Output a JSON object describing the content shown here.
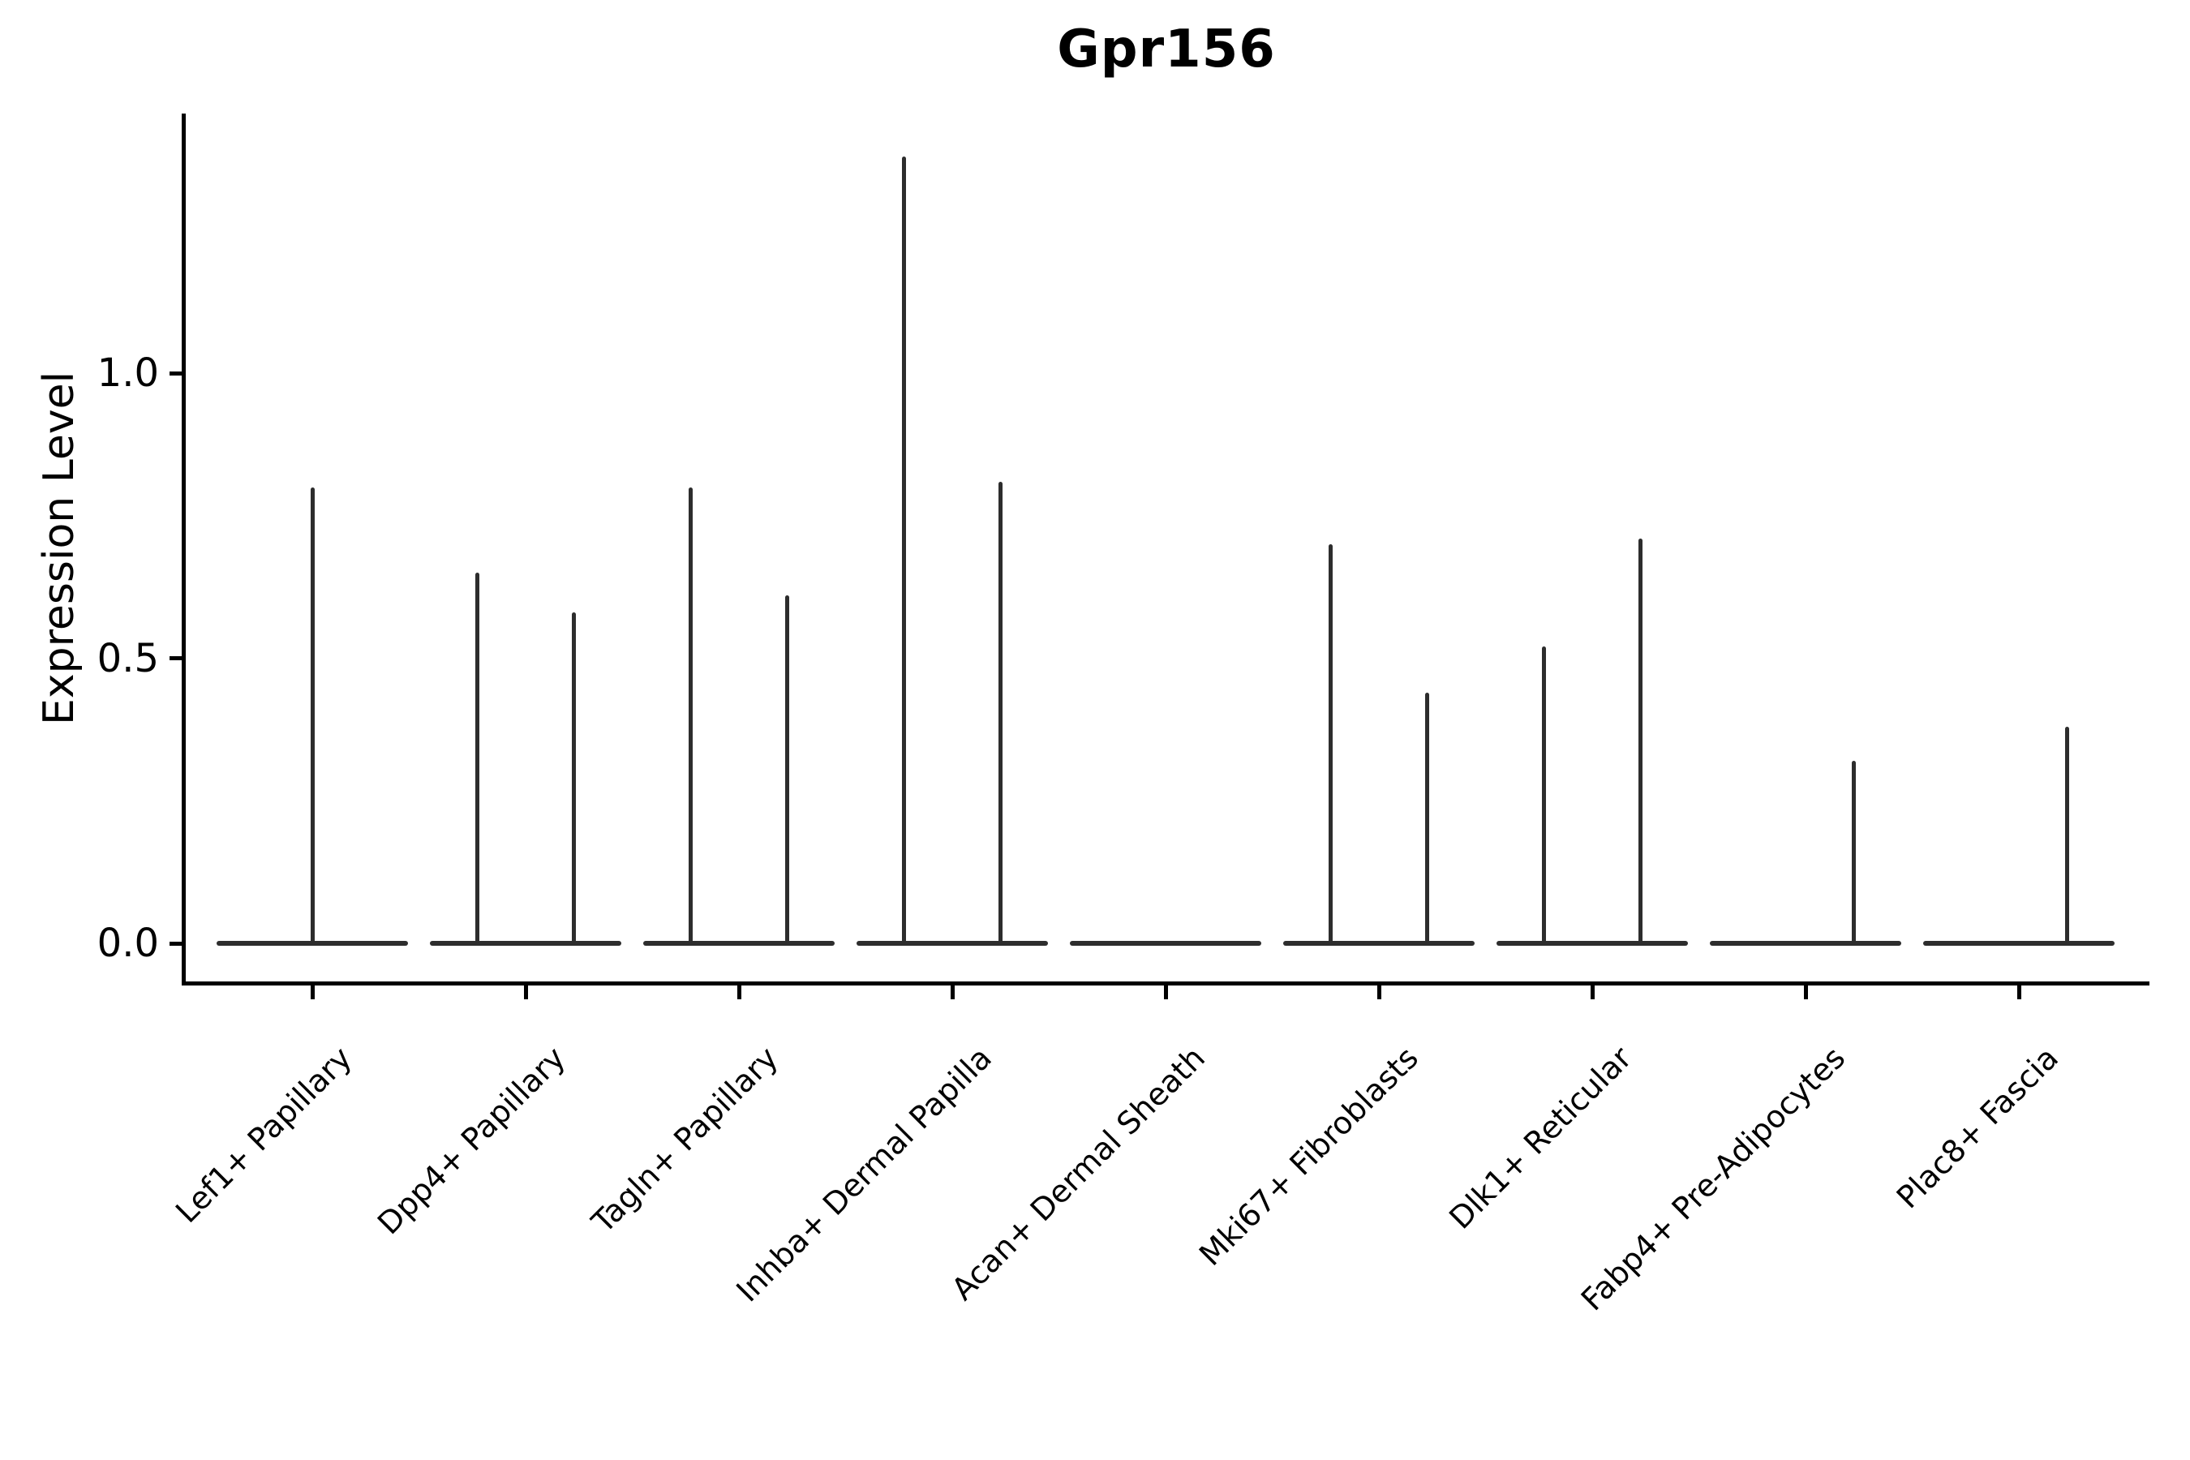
{
  "figure": {
    "title": "Gpr156",
    "y_axis_label": "Expression Level"
  },
  "chart_data": {
    "type": "violin",
    "title": "Gpr156",
    "xlabel": "",
    "ylabel": "Expression Level",
    "grid": false,
    "legend_position": "none",
    "background_color": "#ffffff",
    "violin_line_color": "#2d2d2d",
    "axis_color": "#000000",
    "ylim": [
      -0.07,
      1.46
    ],
    "yticks": [
      {
        "value": 0.0,
        "label": "0.0"
      },
      {
        "value": 0.5,
        "label": "0.5"
      },
      {
        "value": 1.0,
        "label": "1.0"
      }
    ],
    "categories": [
      "Lef1+ Papillary",
      "Dpp4+ Papillary",
      "Tagln+ Papillary",
      "Inhba+ Dermal Papilla",
      "Acan+ Dermal Sheath",
      "Mki67+ Fibroblasts",
      "Dlk1+ Reticular",
      "Fabp4+ Pre-Adipocytes",
      "Plac8+ Fascia"
    ],
    "violins": [
      {
        "category": "Lef1+ Papillary",
        "zero_body_width": 0.9,
        "spikes": [
          {
            "offset": 0.0,
            "max": 0.8
          }
        ]
      },
      {
        "category": "Dpp4+ Papillary",
        "zero_body_width": 0.9,
        "spikes": [
          {
            "offset": -0.225,
            "max": 0.65
          },
          {
            "offset": 0.225,
            "max": 0.58
          }
        ]
      },
      {
        "category": "Tagln+ Papillary",
        "zero_body_width": 0.9,
        "spikes": [
          {
            "offset": -0.225,
            "max": 0.8
          },
          {
            "offset": 0.225,
            "max": 0.61
          }
        ]
      },
      {
        "category": "Inhba+ Dermal Papilla",
        "zero_body_width": 0.9,
        "spikes": [
          {
            "offset": -0.225,
            "max": 1.38
          },
          {
            "offset": 0.225,
            "max": 0.81
          }
        ]
      },
      {
        "category": "Acan+ Dermal Sheath",
        "zero_body_width": 0.9,
        "spikes": []
      },
      {
        "category": "Mki67+ Fibroblasts",
        "zero_body_width": 0.9,
        "spikes": [
          {
            "offset": -0.225,
            "max": 0.7
          },
          {
            "offset": 0.225,
            "max": 0.44
          }
        ]
      },
      {
        "category": "Dlk1+ Reticular",
        "zero_body_width": 0.9,
        "spikes": [
          {
            "offset": -0.225,
            "max": 0.52
          },
          {
            "offset": 0.225,
            "max": 0.71
          }
        ]
      },
      {
        "category": "Fabp4+ Pre-Adipocytes",
        "zero_body_width": 0.9,
        "spikes": [
          {
            "offset": 0.225,
            "max": 0.32
          }
        ]
      },
      {
        "category": "Plac8+ Fascia",
        "zero_body_width": 0.9,
        "spikes": [
          {
            "offset": 0.225,
            "max": 0.38
          }
        ]
      }
    ]
  }
}
